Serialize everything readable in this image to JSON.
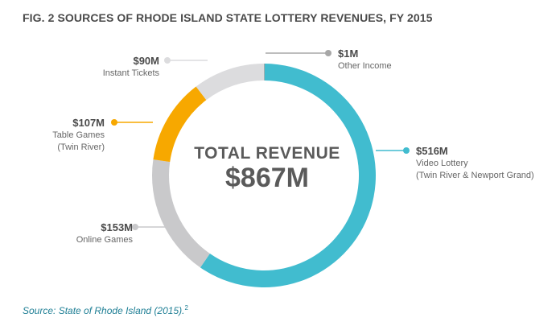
{
  "title": "FIG. 2 SOURCES OF RHODE ISLAND STATE LOTTERY REVENUES, FY 2015",
  "center": {
    "line1": "TOTAL REVENUE",
    "line2": "$867M"
  },
  "source": {
    "prefix": "Source:",
    "text": " State of Rhode Island (2015).",
    "footnote": "2"
  },
  "chart_data": {
    "type": "pie",
    "donut": true,
    "total": 867,
    "unit": "$M",
    "slices": [
      {
        "value": 1,
        "value_label": "$1M",
        "label_lines": [
          "Other Income"
        ],
        "color": "#a7a7a7"
      },
      {
        "value": 516,
        "value_label": "$516M",
        "label_lines": [
          "Video Lottery",
          "(Twin River & Newport Grand)"
        ],
        "color": "#41bccf"
      },
      {
        "value": 153,
        "value_label": "$153M",
        "label_lines": [
          "Online Games"
        ],
        "color": "#c9c9cb"
      },
      {
        "value": 107,
        "value_label": "$107M",
        "label_lines": [
          "Table Games",
          "(Twin River)"
        ],
        "color": "#f7a800"
      },
      {
        "value": 90,
        "value_label": "$90M",
        "label_lines": [
          "Instant Tickets"
        ],
        "color": "#dcdcde"
      }
    ]
  }
}
